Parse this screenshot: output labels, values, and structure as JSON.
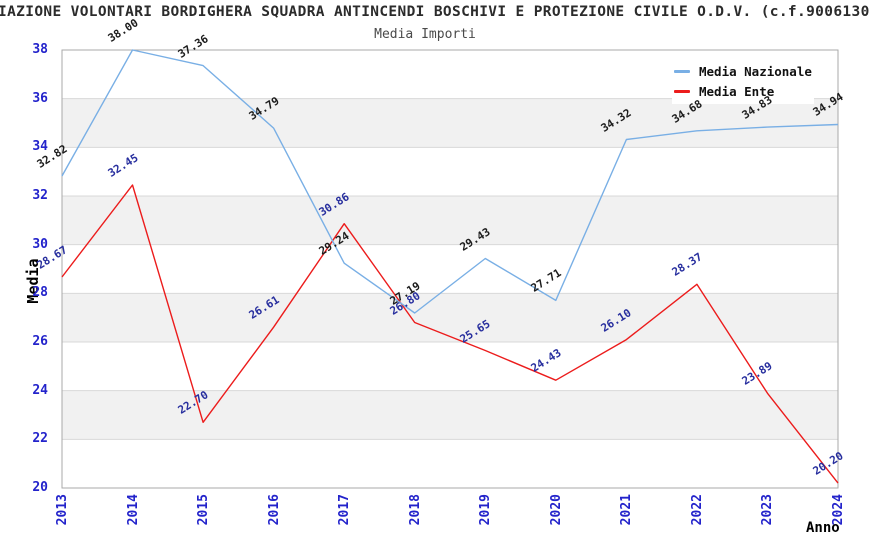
{
  "page": {
    "title_visible": "IAZIONE VOLONTARI BORDIGHERA SQUADRA ANTINCENDI BOSCHIVI E PROTEZIONE CIVILE O.D.V. (c.f.9006130",
    "subtitle": "Media Importi"
  },
  "axes": {
    "y_label": "Media",
    "x_label": "Anno"
  },
  "chart_data": {
    "type": "line",
    "title": "Media Importi",
    "categories": [
      "2013",
      "2014",
      "2015",
      "2016",
      "2017",
      "2018",
      "2019",
      "2020",
      "2021",
      "2022",
      "2023",
      "2024"
    ],
    "series": [
      {
        "name": "Media Nazionale",
        "color": "#79AFE5",
        "label_color": "#1C1C1C",
        "values": [
          32.82,
          38.0,
          37.36,
          34.79,
          29.24,
          27.19,
          29.43,
          27.71,
          34.32,
          34.68,
          34.83,
          34.94
        ]
      },
      {
        "name": "Media Ente",
        "color": "#EC1C1C",
        "label_color": "#272E9E",
        "values": [
          28.67,
          32.45,
          22.7,
          26.61,
          30.86,
          26.8,
          25.65,
          24.43,
          26.1,
          28.37,
          23.89,
          20.2
        ]
      }
    ],
    "xlabel": "Anno",
    "ylabel": "Media",
    "ylim": [
      20,
      38
    ],
    "ytick_step": 2,
    "xtick_rotation_deg": 90,
    "point_label_format": "0.00",
    "grid": "horizontal",
    "bands": "alternating gray every 2 units (22-24, 26-28, 30-32, 34-36)",
    "legend_position": "top-right"
  },
  "style_colors": {
    "tick_label": "#2323CB",
    "axis_label": "#000000",
    "grid_line": "#D8D8D8",
    "band_fill": "#F1F1F1",
    "plot_border": "#A9A9A9",
    "background": "#FFFFFF",
    "title_color": "#2B2B2B",
    "subtitle_color": "#4A4A4A"
  }
}
